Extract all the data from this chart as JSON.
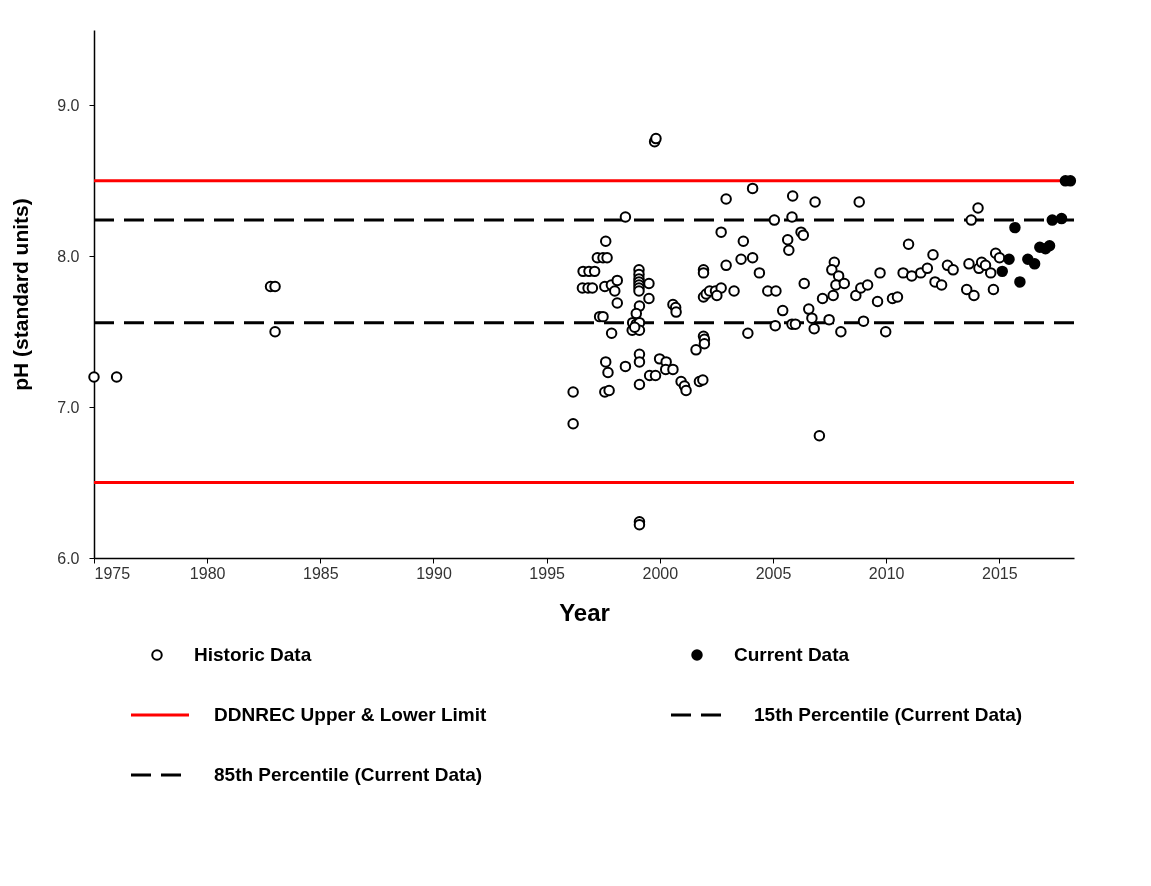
{
  "chart_data": {
    "type": "scatter",
    "xlabel": "Year",
    "ylabel": "pH (standard units)",
    "xlim": [
      1975,
      2018.3
    ],
    "ylim": [
      6,
      9.5
    ],
    "xticks": [
      1975,
      1980,
      1985,
      1990,
      1995,
      2000,
      2005,
      2010,
      2015
    ],
    "yticks": [
      {
        "value": 6,
        "label": "6.0"
      },
      {
        "value": 7,
        "label": "7.0"
      },
      {
        "value": 8,
        "label": "8.0"
      },
      {
        "value": 9,
        "label": "9.0"
      }
    ],
    "grid": false,
    "legend": "bottom",
    "marker": "circle",
    "series": [
      {
        "name": "Historic Data",
        "color": "#ffffff",
        "x": [
          1975.0,
          1976.0,
          1982.8,
          1983.0,
          1983.0,
          1999.77,
          1999.83,
          1996.17,
          1996.17,
          1997.61,
          1997.24,
          1997.49,
          1997.67,
          1996.61,
          1996.87,
          1997.12,
          1996.58,
          1996.83,
          1997.02,
          1997.57,
          1997.86,
          1998.12,
          1998.01,
          1998.12,
          1997.34,
          1997.49,
          1997.87,
          1999.08,
          1999.08,
          1999.08,
          1999.08,
          1999.08,
          1999.08,
          1999.08,
          1999.52,
          1999.52,
          1999.1,
          1998.96,
          1998.8,
          1998.96,
          1999.1,
          1998.78,
          1999.1,
          1998.89,
          1998.48,
          1997.61,
          1997.71,
          1997.57,
          1997.76,
          1998.48,
          1999.1,
          1999.1,
          1999.1,
          1999.55,
          1999.81,
          1999.99,
          2000.28,
          2000.26,
          2000.58,
          2000.58,
          2000.7,
          2000.72,
          2000.94,
          2001.09,
          2001.16,
          2001.6,
          2001.75,
          2001.9,
          2001.93,
          2001.97,
          2001.97,
          2001.93,
          2001.93,
          2001.93,
          2002.05,
          2002.2,
          2002.46,
          2002.71,
          2002.52,
          2002.93,
          2002.71,
          2002.93,
          2003.28,
          2003.59,
          2003.69,
          2004.1,
          2004.1,
          2004.4,
          2003.89,
          2004.77,
          2005.13,
          2005.43,
          2005.1,
          2005.84,
          2005.87,
          2006.86,
          2008.81,
          2005.84,
          2005.06,
          2006.24,
          2006.34,
          2005.65,
          2005.7,
          2006.38,
          2007.71,
          2007.6,
          2007.9,
          2007.78,
          2008.15,
          2007.66,
          2007.19,
          2006.58,
          2006.72,
          2006.82,
          2005.99,
          2007.48,
          2008.0,
          2008.66,
          2008.88,
          2009.18,
          2009.0,
          2009.73,
          2009.62,
          2009.98,
          2010.28,
          2010.5,
          2007.05,
          2010.99,
          2010.75,
          2011.13,
          2011.53,
          2011.82,
          2012.07,
          2012.16,
          2012.45,
          2012.71,
          2012.96,
          2013.66,
          2014.1,
          2014.22,
          2014.39,
          2014.62,
          2014.84,
          2015.01,
          2013.56,
          2013.88,
          2014.74,
          2013.76,
          2014.06,
          1999.1,
          1999.1
        ],
        "values": [
          7.2,
          7.2,
          7.8,
          7.8,
          7.5,
          8.76,
          8.78,
          7.1,
          6.89,
          8.1,
          7.99,
          7.99,
          7.99,
          7.9,
          7.9,
          7.9,
          7.79,
          7.79,
          7.79,
          7.8,
          7.81,
          7.84,
          7.77,
          7.69,
          7.6,
          7.6,
          7.49,
          7.91,
          7.88,
          7.85,
          7.83,
          7.81,
          7.79,
          7.77,
          7.82,
          7.72,
          7.67,
          7.62,
          7.56,
          7.55,
          7.56,
          7.51,
          7.51,
          7.53,
          8.26,
          7.3,
          7.23,
          7.1,
          7.11,
          7.27,
          7.35,
          7.3,
          7.15,
          7.21,
          7.21,
          7.32,
          7.3,
          7.25,
          7.25,
          7.68,
          7.66,
          7.63,
          7.17,
          7.14,
          7.11,
          7.38,
          7.17,
          7.18,
          7.47,
          7.45,
          7.42,
          7.91,
          7.89,
          7.73,
          7.75,
          7.77,
          7.77,
          7.79,
          7.74,
          7.94,
          8.16,
          8.38,
          7.77,
          7.98,
          8.1,
          8.45,
          7.99,
          7.89,
          7.49,
          7.77,
          7.77,
          7.64,
          7.54,
          7.55,
          8.4,
          8.36,
          8.36,
          8.26,
          8.24,
          8.16,
          8.14,
          8.11,
          8.04,
          7.82,
          7.96,
          7.91,
          7.87,
          7.81,
          7.82,
          7.74,
          7.72,
          7.65,
          7.59,
          7.52,
          7.55,
          7.58,
          7.5,
          7.74,
          7.79,
          7.81,
          7.57,
          7.89,
          7.7,
          7.5,
          7.72,
          7.73,
          6.81,
          8.08,
          7.89,
          7.87,
          7.89,
          7.92,
          8.01,
          7.83,
          7.81,
          7.94,
          7.91,
          7.95,
          7.92,
          7.96,
          7.94,
          7.89,
          8.02,
          7.99,
          7.78,
          7.74,
          7.78,
          8.24,
          8.32,
          6.24,
          6.22
        ]
      },
      {
        "name": "Current Data",
        "color": "#000000",
        "x": [
          2015.13,
          2015.43,
          2015.69,
          2015.91,
          2016.26,
          2016.56,
          2016.79,
          2017.04,
          2017.22,
          2017.34,
          2017.75,
          2017.92,
          2018.14
        ],
        "values": [
          7.9,
          7.98,
          8.19,
          7.83,
          7.98,
          7.95,
          8.06,
          8.05,
          8.07,
          8.24,
          8.25,
          8.5,
          8.5
        ]
      }
    ],
    "ref_lines": [
      {
        "axis": "y",
        "value": 8.5,
        "label": "DDNREC Upper & Lower Limit",
        "color": "#ff0000",
        "line_style": "solid"
      },
      {
        "axis": "y",
        "value": 6.5,
        "color": "#ff0000",
        "line_style": "solid"
      },
      {
        "axis": "y",
        "value": 7.56,
        "label": "15th Percentile (Current Data)",
        "color": "#000000",
        "line_style": "dashed"
      },
      {
        "axis": "y",
        "value": 8.24,
        "label": "85th Percentile (Current Data)",
        "color": "#000000",
        "line_style": "dashed"
      }
    ]
  }
}
